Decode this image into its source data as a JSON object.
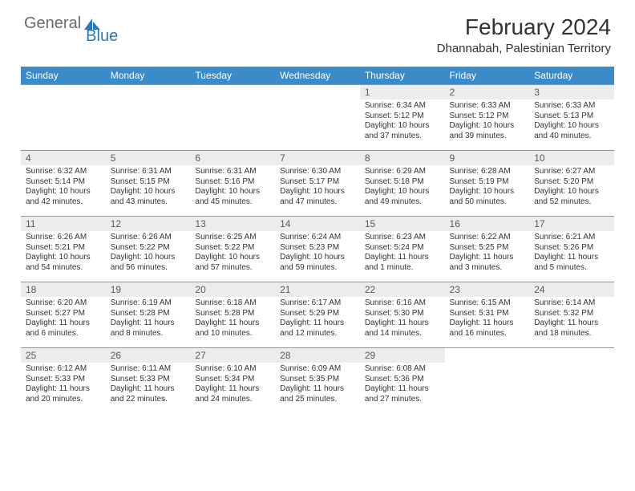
{
  "logo": {
    "text1": "General",
    "text2": "Blue"
  },
  "title": "February 2024",
  "location": "Dhannabah, Palestinian Territory",
  "colors": {
    "header_bg": "#3b8bc8",
    "date_bg": "#ececec",
    "rule": "#7a9bb5",
    "logo_gray": "#6b6b6b",
    "logo_blue": "#2a7ab9"
  },
  "dayNames": [
    "Sunday",
    "Monday",
    "Tuesday",
    "Wednesday",
    "Thursday",
    "Friday",
    "Saturday"
  ],
  "grid": [
    [
      {
        "empty": true
      },
      {
        "empty": true
      },
      {
        "empty": true
      },
      {
        "empty": true
      },
      {
        "date": "1",
        "sunrise": "Sunrise: 6:34 AM",
        "sunset": "Sunset: 5:12 PM",
        "day1": "Daylight: 10 hours",
        "day2": "and 37 minutes."
      },
      {
        "date": "2",
        "sunrise": "Sunrise: 6:33 AM",
        "sunset": "Sunset: 5:12 PM",
        "day1": "Daylight: 10 hours",
        "day2": "and 39 minutes."
      },
      {
        "date": "3",
        "sunrise": "Sunrise: 6:33 AM",
        "sunset": "Sunset: 5:13 PM",
        "day1": "Daylight: 10 hours",
        "day2": "and 40 minutes."
      }
    ],
    [
      {
        "date": "4",
        "sunrise": "Sunrise: 6:32 AM",
        "sunset": "Sunset: 5:14 PM",
        "day1": "Daylight: 10 hours",
        "day2": "and 42 minutes."
      },
      {
        "date": "5",
        "sunrise": "Sunrise: 6:31 AM",
        "sunset": "Sunset: 5:15 PM",
        "day1": "Daylight: 10 hours",
        "day2": "and 43 minutes."
      },
      {
        "date": "6",
        "sunrise": "Sunrise: 6:31 AM",
        "sunset": "Sunset: 5:16 PM",
        "day1": "Daylight: 10 hours",
        "day2": "and 45 minutes."
      },
      {
        "date": "7",
        "sunrise": "Sunrise: 6:30 AM",
        "sunset": "Sunset: 5:17 PM",
        "day1": "Daylight: 10 hours",
        "day2": "and 47 minutes."
      },
      {
        "date": "8",
        "sunrise": "Sunrise: 6:29 AM",
        "sunset": "Sunset: 5:18 PM",
        "day1": "Daylight: 10 hours",
        "day2": "and 49 minutes."
      },
      {
        "date": "9",
        "sunrise": "Sunrise: 6:28 AM",
        "sunset": "Sunset: 5:19 PM",
        "day1": "Daylight: 10 hours",
        "day2": "and 50 minutes."
      },
      {
        "date": "10",
        "sunrise": "Sunrise: 6:27 AM",
        "sunset": "Sunset: 5:20 PM",
        "day1": "Daylight: 10 hours",
        "day2": "and 52 minutes."
      }
    ],
    [
      {
        "date": "11",
        "sunrise": "Sunrise: 6:26 AM",
        "sunset": "Sunset: 5:21 PM",
        "day1": "Daylight: 10 hours",
        "day2": "and 54 minutes."
      },
      {
        "date": "12",
        "sunrise": "Sunrise: 6:26 AM",
        "sunset": "Sunset: 5:22 PM",
        "day1": "Daylight: 10 hours",
        "day2": "and 56 minutes."
      },
      {
        "date": "13",
        "sunrise": "Sunrise: 6:25 AM",
        "sunset": "Sunset: 5:22 PM",
        "day1": "Daylight: 10 hours",
        "day2": "and 57 minutes."
      },
      {
        "date": "14",
        "sunrise": "Sunrise: 6:24 AM",
        "sunset": "Sunset: 5:23 PM",
        "day1": "Daylight: 10 hours",
        "day2": "and 59 minutes."
      },
      {
        "date": "15",
        "sunrise": "Sunrise: 6:23 AM",
        "sunset": "Sunset: 5:24 PM",
        "day1": "Daylight: 11 hours",
        "day2": "and 1 minute."
      },
      {
        "date": "16",
        "sunrise": "Sunrise: 6:22 AM",
        "sunset": "Sunset: 5:25 PM",
        "day1": "Daylight: 11 hours",
        "day2": "and 3 minutes."
      },
      {
        "date": "17",
        "sunrise": "Sunrise: 6:21 AM",
        "sunset": "Sunset: 5:26 PM",
        "day1": "Daylight: 11 hours",
        "day2": "and 5 minutes."
      }
    ],
    [
      {
        "date": "18",
        "sunrise": "Sunrise: 6:20 AM",
        "sunset": "Sunset: 5:27 PM",
        "day1": "Daylight: 11 hours",
        "day2": "and 6 minutes."
      },
      {
        "date": "19",
        "sunrise": "Sunrise: 6:19 AM",
        "sunset": "Sunset: 5:28 PM",
        "day1": "Daylight: 11 hours",
        "day2": "and 8 minutes."
      },
      {
        "date": "20",
        "sunrise": "Sunrise: 6:18 AM",
        "sunset": "Sunset: 5:28 PM",
        "day1": "Daylight: 11 hours",
        "day2": "and 10 minutes."
      },
      {
        "date": "21",
        "sunrise": "Sunrise: 6:17 AM",
        "sunset": "Sunset: 5:29 PM",
        "day1": "Daylight: 11 hours",
        "day2": "and 12 minutes."
      },
      {
        "date": "22",
        "sunrise": "Sunrise: 6:16 AM",
        "sunset": "Sunset: 5:30 PM",
        "day1": "Daylight: 11 hours",
        "day2": "and 14 minutes."
      },
      {
        "date": "23",
        "sunrise": "Sunrise: 6:15 AM",
        "sunset": "Sunset: 5:31 PM",
        "day1": "Daylight: 11 hours",
        "day2": "and 16 minutes."
      },
      {
        "date": "24",
        "sunrise": "Sunrise: 6:14 AM",
        "sunset": "Sunset: 5:32 PM",
        "day1": "Daylight: 11 hours",
        "day2": "and 18 minutes."
      }
    ],
    [
      {
        "date": "25",
        "sunrise": "Sunrise: 6:12 AM",
        "sunset": "Sunset: 5:33 PM",
        "day1": "Daylight: 11 hours",
        "day2": "and 20 minutes."
      },
      {
        "date": "26",
        "sunrise": "Sunrise: 6:11 AM",
        "sunset": "Sunset: 5:33 PM",
        "day1": "Daylight: 11 hours",
        "day2": "and 22 minutes."
      },
      {
        "date": "27",
        "sunrise": "Sunrise: 6:10 AM",
        "sunset": "Sunset: 5:34 PM",
        "day1": "Daylight: 11 hours",
        "day2": "and 24 minutes."
      },
      {
        "date": "28",
        "sunrise": "Sunrise: 6:09 AM",
        "sunset": "Sunset: 5:35 PM",
        "day1": "Daylight: 11 hours",
        "day2": "and 25 minutes."
      },
      {
        "date": "29",
        "sunrise": "Sunrise: 6:08 AM",
        "sunset": "Sunset: 5:36 PM",
        "day1": "Daylight: 11 hours",
        "day2": "and 27 minutes."
      },
      {
        "empty": true
      },
      {
        "empty": true
      }
    ]
  ]
}
